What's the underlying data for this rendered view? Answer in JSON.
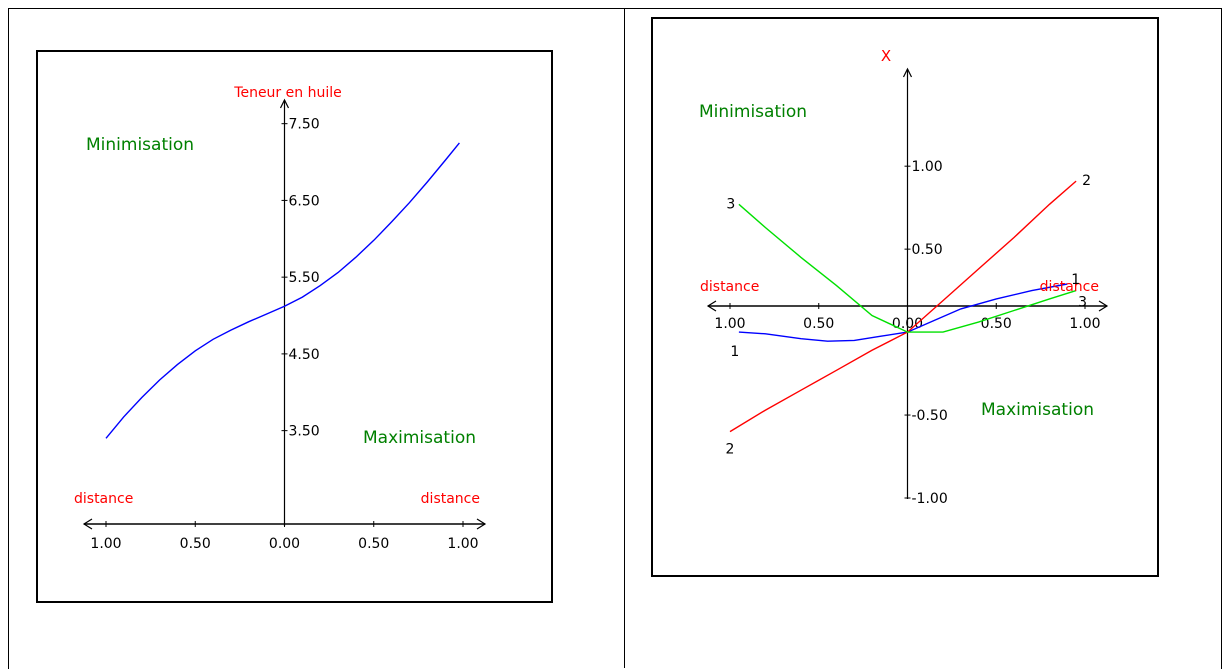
{
  "chart_data": [
    {
      "type": "line",
      "ylabel": "Teneur en huile",
      "xlabel_left": "distance",
      "xlabel_right": "distance",
      "region_top_left": "Minimisation",
      "region_bottom_right": "Maximisation",
      "xlim": [
        -1.0,
        1.0
      ],
      "ylim": [
        3.0,
        7.6
      ],
      "x_ticks": [
        -1.0,
        -0.5,
        0.0,
        0.5,
        1.0
      ],
      "x_tick_labels": [
        "1.00",
        "0.50",
        "0.00",
        "0.50",
        "1.00"
      ],
      "y_ticks": [
        3.5,
        4.5,
        5.5,
        6.5,
        7.5
      ],
      "y_tick_labels": [
        "3.50",
        "4.50",
        "5.50",
        "6.50",
        "7.50"
      ],
      "grid": false,
      "colors": {
        "curve": "#0000ff",
        "axis_label": "#ff0000",
        "region": "#008000"
      },
      "series": [
        {
          "x": [
            -1.0,
            -0.9,
            -0.8,
            -0.7,
            -0.6,
            -0.5,
            -0.4,
            -0.3,
            -0.2,
            -0.1,
            0.0,
            0.1,
            0.2,
            0.3,
            0.4,
            0.5,
            0.6,
            0.7,
            0.8,
            0.9,
            0.98
          ],
          "y": [
            3.4,
            3.68,
            3.93,
            4.16,
            4.36,
            4.54,
            4.69,
            4.81,
            4.92,
            5.02,
            5.12,
            5.24,
            5.39,
            5.56,
            5.76,
            5.98,
            6.22,
            6.47,
            6.74,
            7.02,
            7.25
          ]
        }
      ]
    },
    {
      "type": "line",
      "ylabel": "X",
      "xlabel_left": "distance",
      "xlabel_right": "distance",
      "region_top_left": "Minimisation",
      "region_bottom_right": "Maximisation",
      "xlim": [
        -1.0,
        1.0
      ],
      "ylim": [
        -1.0,
        1.2
      ],
      "x_ticks": [
        -1.0,
        -0.5,
        0.0,
        0.5,
        1.0
      ],
      "x_tick_labels": [
        "1.00",
        "0.50",
        "0.00",
        "0.50",
        "1.00"
      ],
      "y_ticks": [
        -1.0,
        -0.5,
        0.5,
        1.0
      ],
      "y_tick_labels": [
        "-1.00",
        "-0.50",
        "0.50",
        "1.00"
      ],
      "grid": false,
      "colors": {
        "axis_label": "#ff0000",
        "region": "#008000"
      },
      "series": [
        {
          "name": "1",
          "color": "#0000ff",
          "x": [
            -0.95,
            -0.8,
            -0.6,
            -0.45,
            -0.3,
            -0.15,
            0.0,
            0.15,
            0.3,
            0.5,
            0.7,
            0.9
          ],
          "y": [
            0.0,
            -0.01,
            -0.04,
            -0.055,
            -0.05,
            -0.025,
            0.0,
            0.07,
            0.14,
            0.2,
            0.25,
            0.29
          ]
        },
        {
          "name": "2",
          "color": "#ff0000",
          "x": [
            -1.0,
            -0.8,
            -0.6,
            -0.4,
            -0.2,
            0.0,
            0.2,
            0.4,
            0.6,
            0.8,
            0.95
          ],
          "y": [
            -0.6,
            -0.47,
            -0.35,
            -0.23,
            -0.11,
            0.0,
            0.19,
            0.38,
            0.57,
            0.77,
            0.91
          ]
        },
        {
          "name": "3",
          "color": "#00e000",
          "x": [
            -0.95,
            -0.8,
            -0.6,
            -0.4,
            -0.2,
            0.0,
            0.2,
            0.4,
            0.6,
            0.8,
            0.95
          ],
          "y": [
            0.77,
            0.63,
            0.45,
            0.28,
            0.1,
            0.0,
            0.0,
            0.06,
            0.13,
            0.2,
            0.25
          ]
        }
      ]
    }
  ]
}
